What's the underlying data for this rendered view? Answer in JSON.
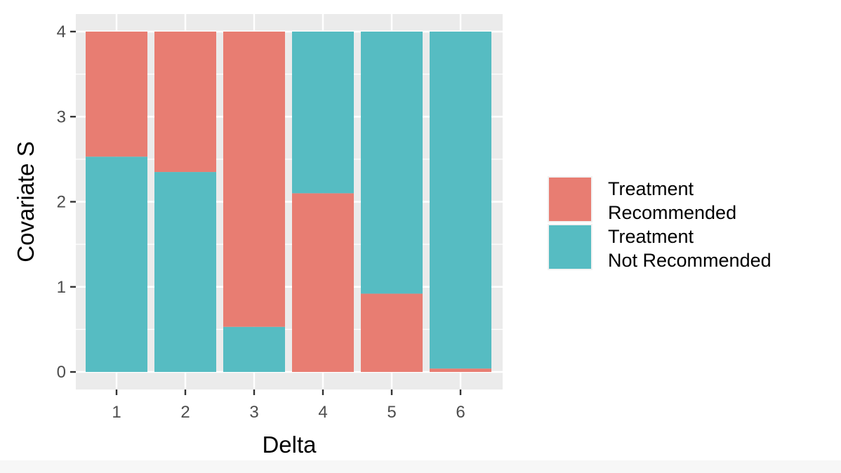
{
  "chart_data": {
    "type": "bar",
    "stacked": true,
    "normalized_to": 4,
    "categories": [
      "1",
      "2",
      "3",
      "4",
      "5",
      "6"
    ],
    "series": [
      {
        "name": "Treatment Recommended",
        "color": "#e87d72",
        "position": "top",
        "values": [
          1.47,
          1.65,
          3.47,
          2.1,
          0.92,
          0.04
        ]
      },
      {
        "name": "Treatment Not Recommended",
        "color": "#56bcc2",
        "position": "bottom",
        "values": [
          2.53,
          2.35,
          0.53,
          1.9,
          3.08,
          3.96
        ]
      }
    ],
    "stack_order": [
      [
        "Treatment Not Recommended",
        "Treatment Recommended"
      ],
      [
        "Treatment Not Recommended",
        "Treatment Recommended"
      ],
      [
        "Treatment Not Recommended",
        "Treatment Recommended"
      ],
      [
        "Treatment Recommended",
        "Treatment Not Recommended"
      ],
      [
        "Treatment Recommended",
        "Treatment Not Recommended"
      ],
      [
        "Treatment Recommended",
        "Treatment Not Recommended"
      ]
    ],
    "xlabel": "Delta",
    "ylabel": "Covariate S",
    "ylim": [
      0,
      4
    ],
    "yticks": [
      0,
      1,
      2,
      3,
      4
    ],
    "grid": true,
    "legend": {
      "placement": "right",
      "entries": [
        {
          "series": "Treatment Recommended",
          "lines": [
            "Treatment",
            "Recommended"
          ]
        },
        {
          "series": "Treatment Not Recommended",
          "lines": [
            "Treatment",
            "Not Recommended"
          ]
        }
      ]
    }
  }
}
